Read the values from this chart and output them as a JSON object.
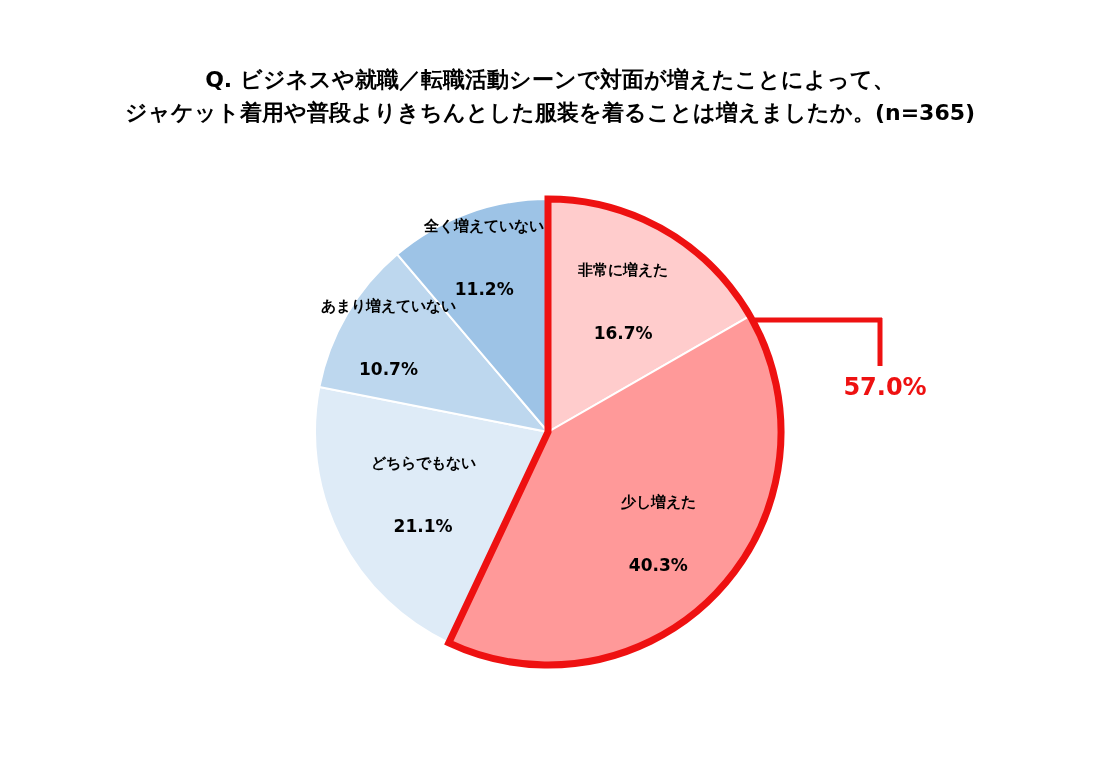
{
  "chart_data": {
    "type": "pie",
    "title": "Q. ビジネスや就職／転職活動シーンで対面が増えたことによって、",
    "subtitle": "ジャケット着用や普段よりきちんとした服装を着ることは増えましたか。(n=365)",
    "categories": [
      "非常に増えた",
      "少し増えた",
      "どちらでもない",
      "あまり増えていない",
      "全く増えていない"
    ],
    "values": [
      16.7,
      40.3,
      21.1,
      10.7,
      11.2
    ],
    "value_labels": [
      "16.7%",
      "40.3%",
      "21.1%",
      "10.7%",
      "11.2%"
    ],
    "colors": [
      "#ffcccc",
      "#ff9999",
      "#deebf7",
      "#bdd7ee",
      "#9dc3e6"
    ],
    "annotations": [
      "57.0%"
    ]
  }
}
